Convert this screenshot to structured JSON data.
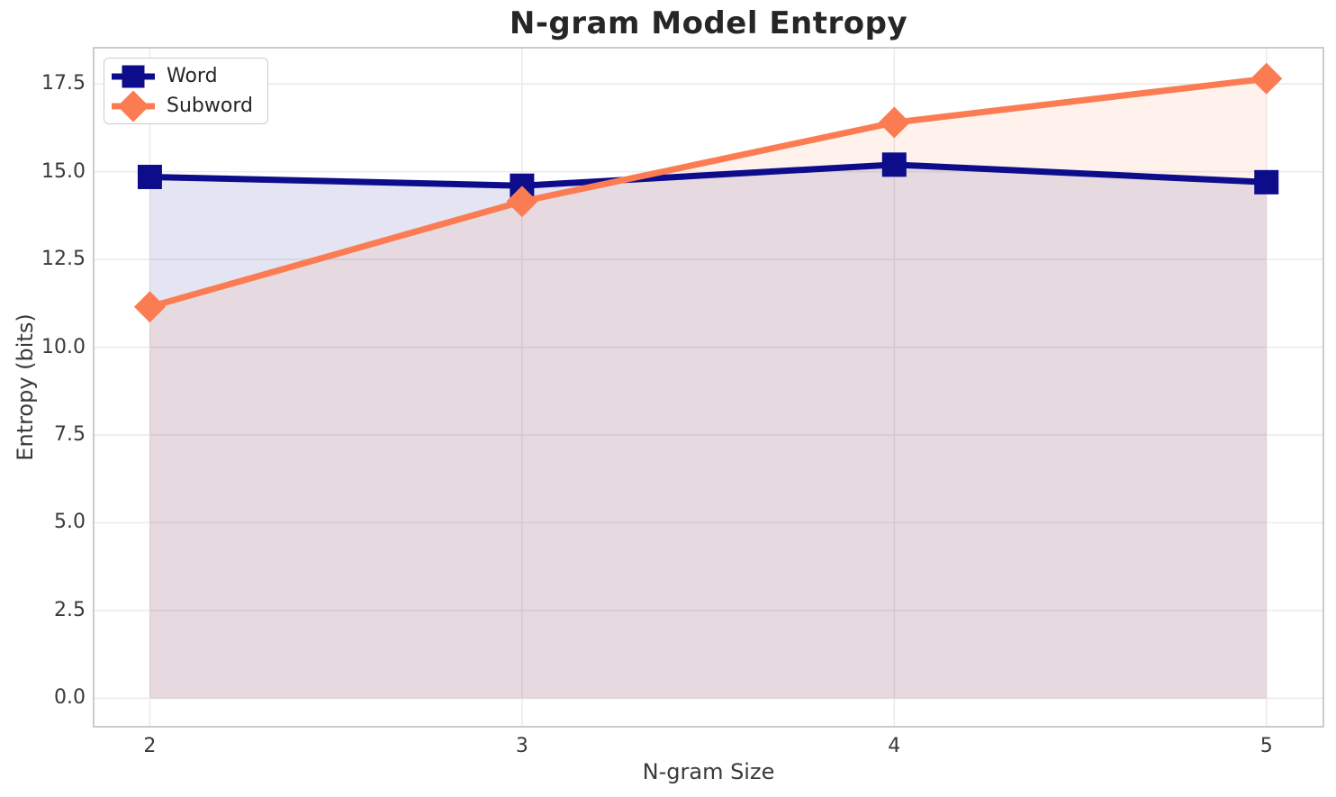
{
  "chart_data": {
    "type": "line",
    "title": "N-gram Model Entropy",
    "xlabel": "N-gram Size",
    "ylabel": "Entropy (bits)",
    "x": [
      2,
      3,
      4,
      5
    ],
    "series": [
      {
        "name": "Word",
        "values": [
          14.85,
          14.6,
          15.2,
          14.7
        ],
        "color": "#0d0d8c",
        "marker": "square",
        "fill_to_zero": true
      },
      {
        "name": "Subword",
        "values": [
          11.15,
          14.15,
          16.4,
          17.65
        ],
        "color": "#fb7c52",
        "marker": "diamond",
        "fill_to_zero": true
      }
    ],
    "x_tick_labels": [
      "2",
      "3",
      "4",
      "5"
    ],
    "y_ticks": [
      0,
      2.5,
      5,
      7.5,
      10,
      12.5,
      15,
      17.5
    ],
    "y_tick_labels": [
      "0.0",
      "2.5",
      "5.0",
      "7.5",
      "10.0",
      "12.5",
      "15.0",
      "17.5"
    ],
    "xlim": [
      1.849,
      5.153
    ],
    "ylim": [
      -0.81,
      18.53
    ],
    "grid": true,
    "legend_position": "upper left",
    "fill_alpha": 0.11,
    "line_width": 7,
    "marker_size": 27
  },
  "colors": {
    "grid": "#ebebeb",
    "plot_border": "#cccccc",
    "title_text": "#262626",
    "tick_text": "#3a3a3a",
    "background": "#ffffff"
  }
}
